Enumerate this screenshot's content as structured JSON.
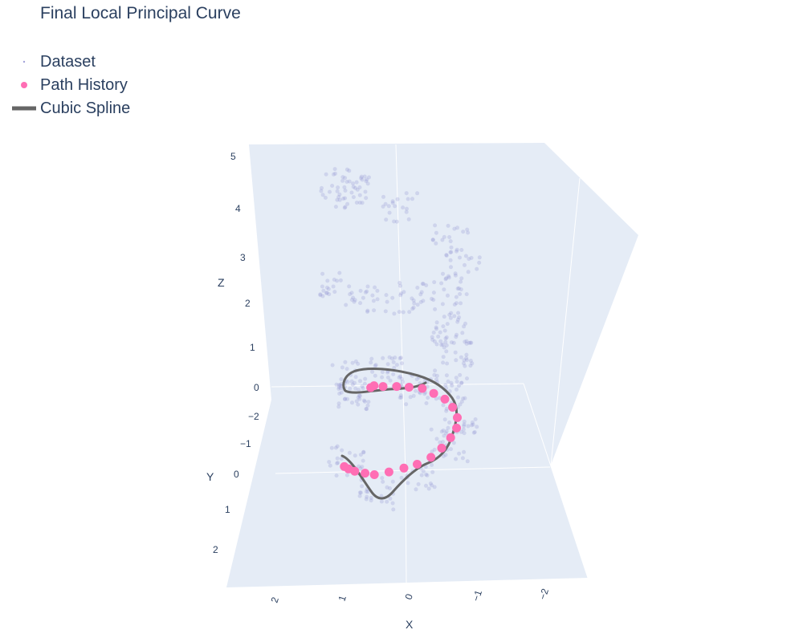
{
  "chart_data": {
    "type": "scatter3d",
    "title": "Final Local Principal Curve",
    "legend": {
      "placement": "top-left",
      "entries": [
        "Dataset",
        "Path History",
        "Cubic Spline"
      ]
    },
    "axes": {
      "x": {
        "title": "X",
        "ticks": [
          "2",
          "1",
          "0",
          "−1",
          "−2"
        ]
      },
      "y": {
        "title": "Y",
        "ticks": [
          "−2",
          "−1",
          "0",
          "1",
          "2"
        ]
      },
      "z": {
        "title": "Z",
        "ticks": [
          "0",
          "1",
          "2",
          "3",
          "4",
          "5"
        ]
      }
    },
    "series": [
      {
        "name": "Dataset",
        "mode": "markers",
        "color": "#8b8bd0",
        "opacity": 0.25
      },
      {
        "name": "Path History",
        "mode": "markers",
        "color": "#ff6eb4",
        "points": [
          {
            "x": 1.05,
            "y": 0.3,
            "z": 0
          },
          {
            "x": 0.96,
            "y": 0.36,
            "z": 0
          },
          {
            "x": 0.83,
            "y": 0.42,
            "z": 0
          },
          {
            "x": 0.63,
            "y": 0.47,
            "z": 0
          },
          {
            "x": 0.45,
            "y": 0.51,
            "z": 0
          },
          {
            "x": 0.2,
            "y": 0.44,
            "z": 0
          },
          {
            "x": -0.05,
            "y": 0.34,
            "z": 0
          },
          {
            "x": -0.27,
            "y": 0.24,
            "z": 0
          },
          {
            "x": -0.48,
            "y": 0.06,
            "z": 0
          },
          {
            "x": -0.62,
            "y": -0.18,
            "z": 0
          },
          {
            "x": -0.72,
            "y": -0.45,
            "z": 0
          },
          {
            "x": -0.77,
            "y": -0.7,
            "z": 0
          },
          {
            "x": -0.72,
            "y": -0.97,
            "z": 0
          },
          {
            "x": -0.57,
            "y": -1.24,
            "z": 0
          },
          {
            "x": -0.38,
            "y": -1.45,
            "z": 0
          },
          {
            "x": -0.14,
            "y": -1.6,
            "z": 0
          },
          {
            "x": 0.1,
            "y": -1.73,
            "z": 0
          },
          {
            "x": 0.35,
            "y": -1.76,
            "z": 0
          },
          {
            "x": 0.58,
            "y": -1.78,
            "z": 0
          },
          {
            "x": 0.83,
            "y": -1.78,
            "z": 0
          },
          {
            "x": 1.05,
            "y": -1.75,
            "z": 0
          },
          {
            "x": 1.0,
            "y": -1.8,
            "z": 0
          }
        ]
      },
      {
        "name": "Cubic Spline",
        "mode": "lines",
        "color": "#666666"
      }
    ]
  }
}
